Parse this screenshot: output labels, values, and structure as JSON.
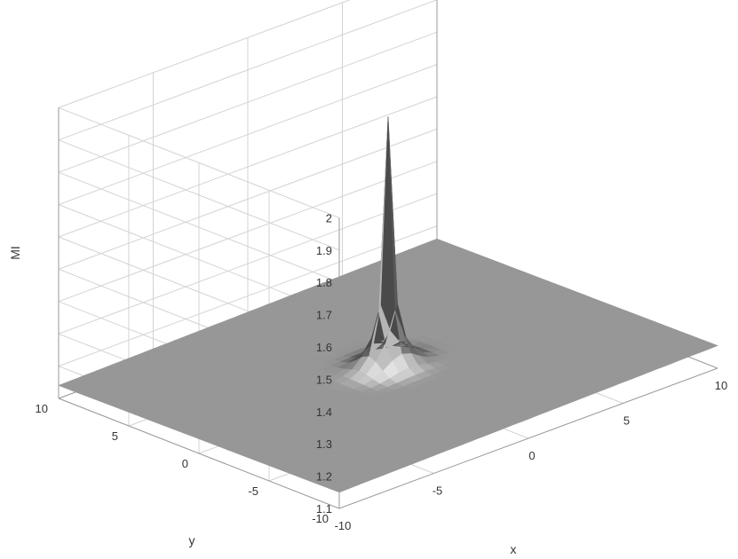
{
  "chart_data": {
    "type": "surface",
    "title": "",
    "xlabel": "x",
    "ylabel": "y",
    "zlabel": "MI",
    "xlim": [
      -10,
      10
    ],
    "ylim": [
      -10,
      10
    ],
    "zlim": [
      1.1,
      2
    ],
    "x_ticks": [
      "-10",
      "-5",
      "0",
      "5",
      "10"
    ],
    "y_ticks": [
      "-10",
      "-5",
      "0",
      "5",
      "10"
    ],
    "z_ticks": [
      "1.1",
      "1.2",
      "1.3",
      "1.4",
      "1.5",
      "1.6",
      "1.7",
      "1.8",
      "1.9",
      "2"
    ],
    "grid": true,
    "colormap": "gray",
    "surface": {
      "base_level": 1.15,
      "peak": {
        "x": 0,
        "y": 0,
        "z": 1.92
      },
      "description_of_shape": "flat plane with sharp central spike"
    }
  }
}
